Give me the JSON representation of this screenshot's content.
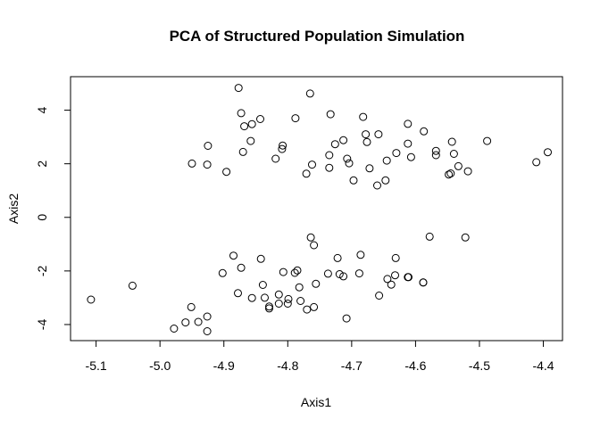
{
  "chart_data": {
    "type": "scatter",
    "title": "PCA of Structured Population Simulation",
    "xlabel": "Axis1",
    "ylabel": "Axis2",
    "xlim": [
      -5.14,
      -4.37
    ],
    "ylim": [
      -4.6,
      5.25
    ],
    "xticks": [
      -5.1,
      -5.0,
      -4.9,
      -4.8,
      -4.7,
      -4.6,
      -4.5,
      -4.4
    ],
    "xtick_labels": [
      "-5.1",
      "-5.0",
      "-4.9",
      "-4.8",
      "-4.7",
      "-4.6",
      "-4.5",
      "-4.4"
    ],
    "yticks": [
      -4,
      -2,
      0,
      2,
      4
    ],
    "ytick_labels": [
      "-4",
      "-2",
      "0",
      "2",
      "4"
    ],
    "grid": false,
    "series": [
      {
        "points": [
          [
            -4.877,
            4.83
          ],
          [
            -4.765,
            4.62
          ],
          [
            -4.873,
            3.89
          ],
          [
            -4.733,
            3.85
          ],
          [
            -4.682,
            3.75
          ],
          [
            -4.788,
            3.7
          ],
          [
            -4.843,
            3.67
          ],
          [
            -4.856,
            3.48
          ],
          [
            -4.868,
            3.4
          ],
          [
            -4.612,
            3.49
          ],
          [
            -4.587,
            3.21
          ],
          [
            -4.678,
            3.1
          ],
          [
            -4.658,
            3.1
          ],
          [
            -4.726,
            2.73
          ],
          [
            -4.713,
            2.88
          ],
          [
            -4.676,
            2.81
          ],
          [
            -4.612,
            2.75
          ],
          [
            -4.543,
            2.82
          ],
          [
            -4.488,
            2.85
          ],
          [
            -4.858,
            2.85
          ],
          [
            -4.925,
            2.67
          ],
          [
            -4.808,
            2.68
          ],
          [
            -4.809,
            2.55
          ],
          [
            -4.87,
            2.44
          ],
          [
            -4.735,
            2.32
          ],
          [
            -4.63,
            2.4
          ],
          [
            -4.568,
            2.48
          ],
          [
            -4.568,
            2.32
          ],
          [
            -4.54,
            2.37
          ],
          [
            -4.393,
            2.43
          ],
          [
            -4.607,
            2.25
          ],
          [
            -4.707,
            2.19
          ],
          [
            -4.645,
            2.12
          ],
          [
            -4.819,
            2.19
          ],
          [
            -4.411,
            2.06
          ],
          [
            -4.95,
            2.01
          ],
          [
            -4.926,
            1.97
          ],
          [
            -4.762,
            1.97
          ],
          [
            -4.704,
            2.02
          ],
          [
            -4.533,
            1.91
          ],
          [
            -4.735,
            1.85
          ],
          [
            -4.672,
            1.83
          ],
          [
            -4.518,
            1.72
          ],
          [
            -4.896,
            1.7
          ],
          [
            -4.771,
            1.63
          ],
          [
            -4.548,
            1.6
          ],
          [
            -4.545,
            1.64
          ],
          [
            -4.697,
            1.38
          ],
          [
            -4.647,
            1.38
          ],
          [
            -4.66,
            1.19
          ],
          [
            -4.764,
            -0.75
          ],
          [
            -4.578,
            -0.72
          ],
          [
            -4.522,
            -0.75
          ],
          [
            -4.759,
            -1.04
          ],
          [
            -4.885,
            -1.43
          ],
          [
            -4.722,
            -1.52
          ],
          [
            -4.686,
            -1.4
          ],
          [
            -4.631,
            -1.52
          ],
          [
            -4.842,
            -1.55
          ],
          [
            -4.873,
            -1.88
          ],
          [
            -4.902,
            -2.08
          ],
          [
            -4.807,
            -2.04
          ],
          [
            -4.785,
            -1.98
          ],
          [
            -4.789,
            -2.07
          ],
          [
            -4.737,
            -2.1
          ],
          [
            -4.719,
            -2.12
          ],
          [
            -4.713,
            -2.2
          ],
          [
            -4.688,
            -2.09
          ],
          [
            -4.632,
            -2.16
          ],
          [
            -4.612,
            -2.23
          ],
          [
            -4.611,
            -2.23
          ],
          [
            -4.588,
            -2.43
          ],
          [
            -4.588,
            -2.43
          ],
          [
            -4.644,
            -2.3
          ],
          [
            -4.638,
            -2.51
          ],
          [
            -4.839,
            -2.52
          ],
          [
            -4.782,
            -2.61
          ],
          [
            -4.756,
            -2.48
          ],
          [
            -4.878,
            -2.83
          ],
          [
            -4.814,
            -2.88
          ],
          [
            -4.836,
            -3.0
          ],
          [
            -4.856,
            -3.01
          ],
          [
            -4.799,
            -3.05
          ],
          [
            -4.657,
            -2.92
          ],
          [
            -5.108,
            -3.07
          ],
          [
            -5.043,
            -2.55
          ],
          [
            -4.8,
            -3.22
          ],
          [
            -4.814,
            -3.22
          ],
          [
            -4.78,
            -3.12
          ],
          [
            -4.829,
            -3.33
          ],
          [
            -4.829,
            -3.4
          ],
          [
            -4.759,
            -3.35
          ],
          [
            -4.77,
            -3.44
          ],
          [
            -4.951,
            -3.35
          ],
          [
            -4.926,
            -3.7
          ],
          [
            -4.94,
            -3.9
          ],
          [
            -4.96,
            -3.92
          ],
          [
            -4.978,
            -4.15
          ],
          [
            -4.926,
            -4.25
          ],
          [
            -4.708,
            -3.77
          ]
        ]
      }
    ]
  }
}
